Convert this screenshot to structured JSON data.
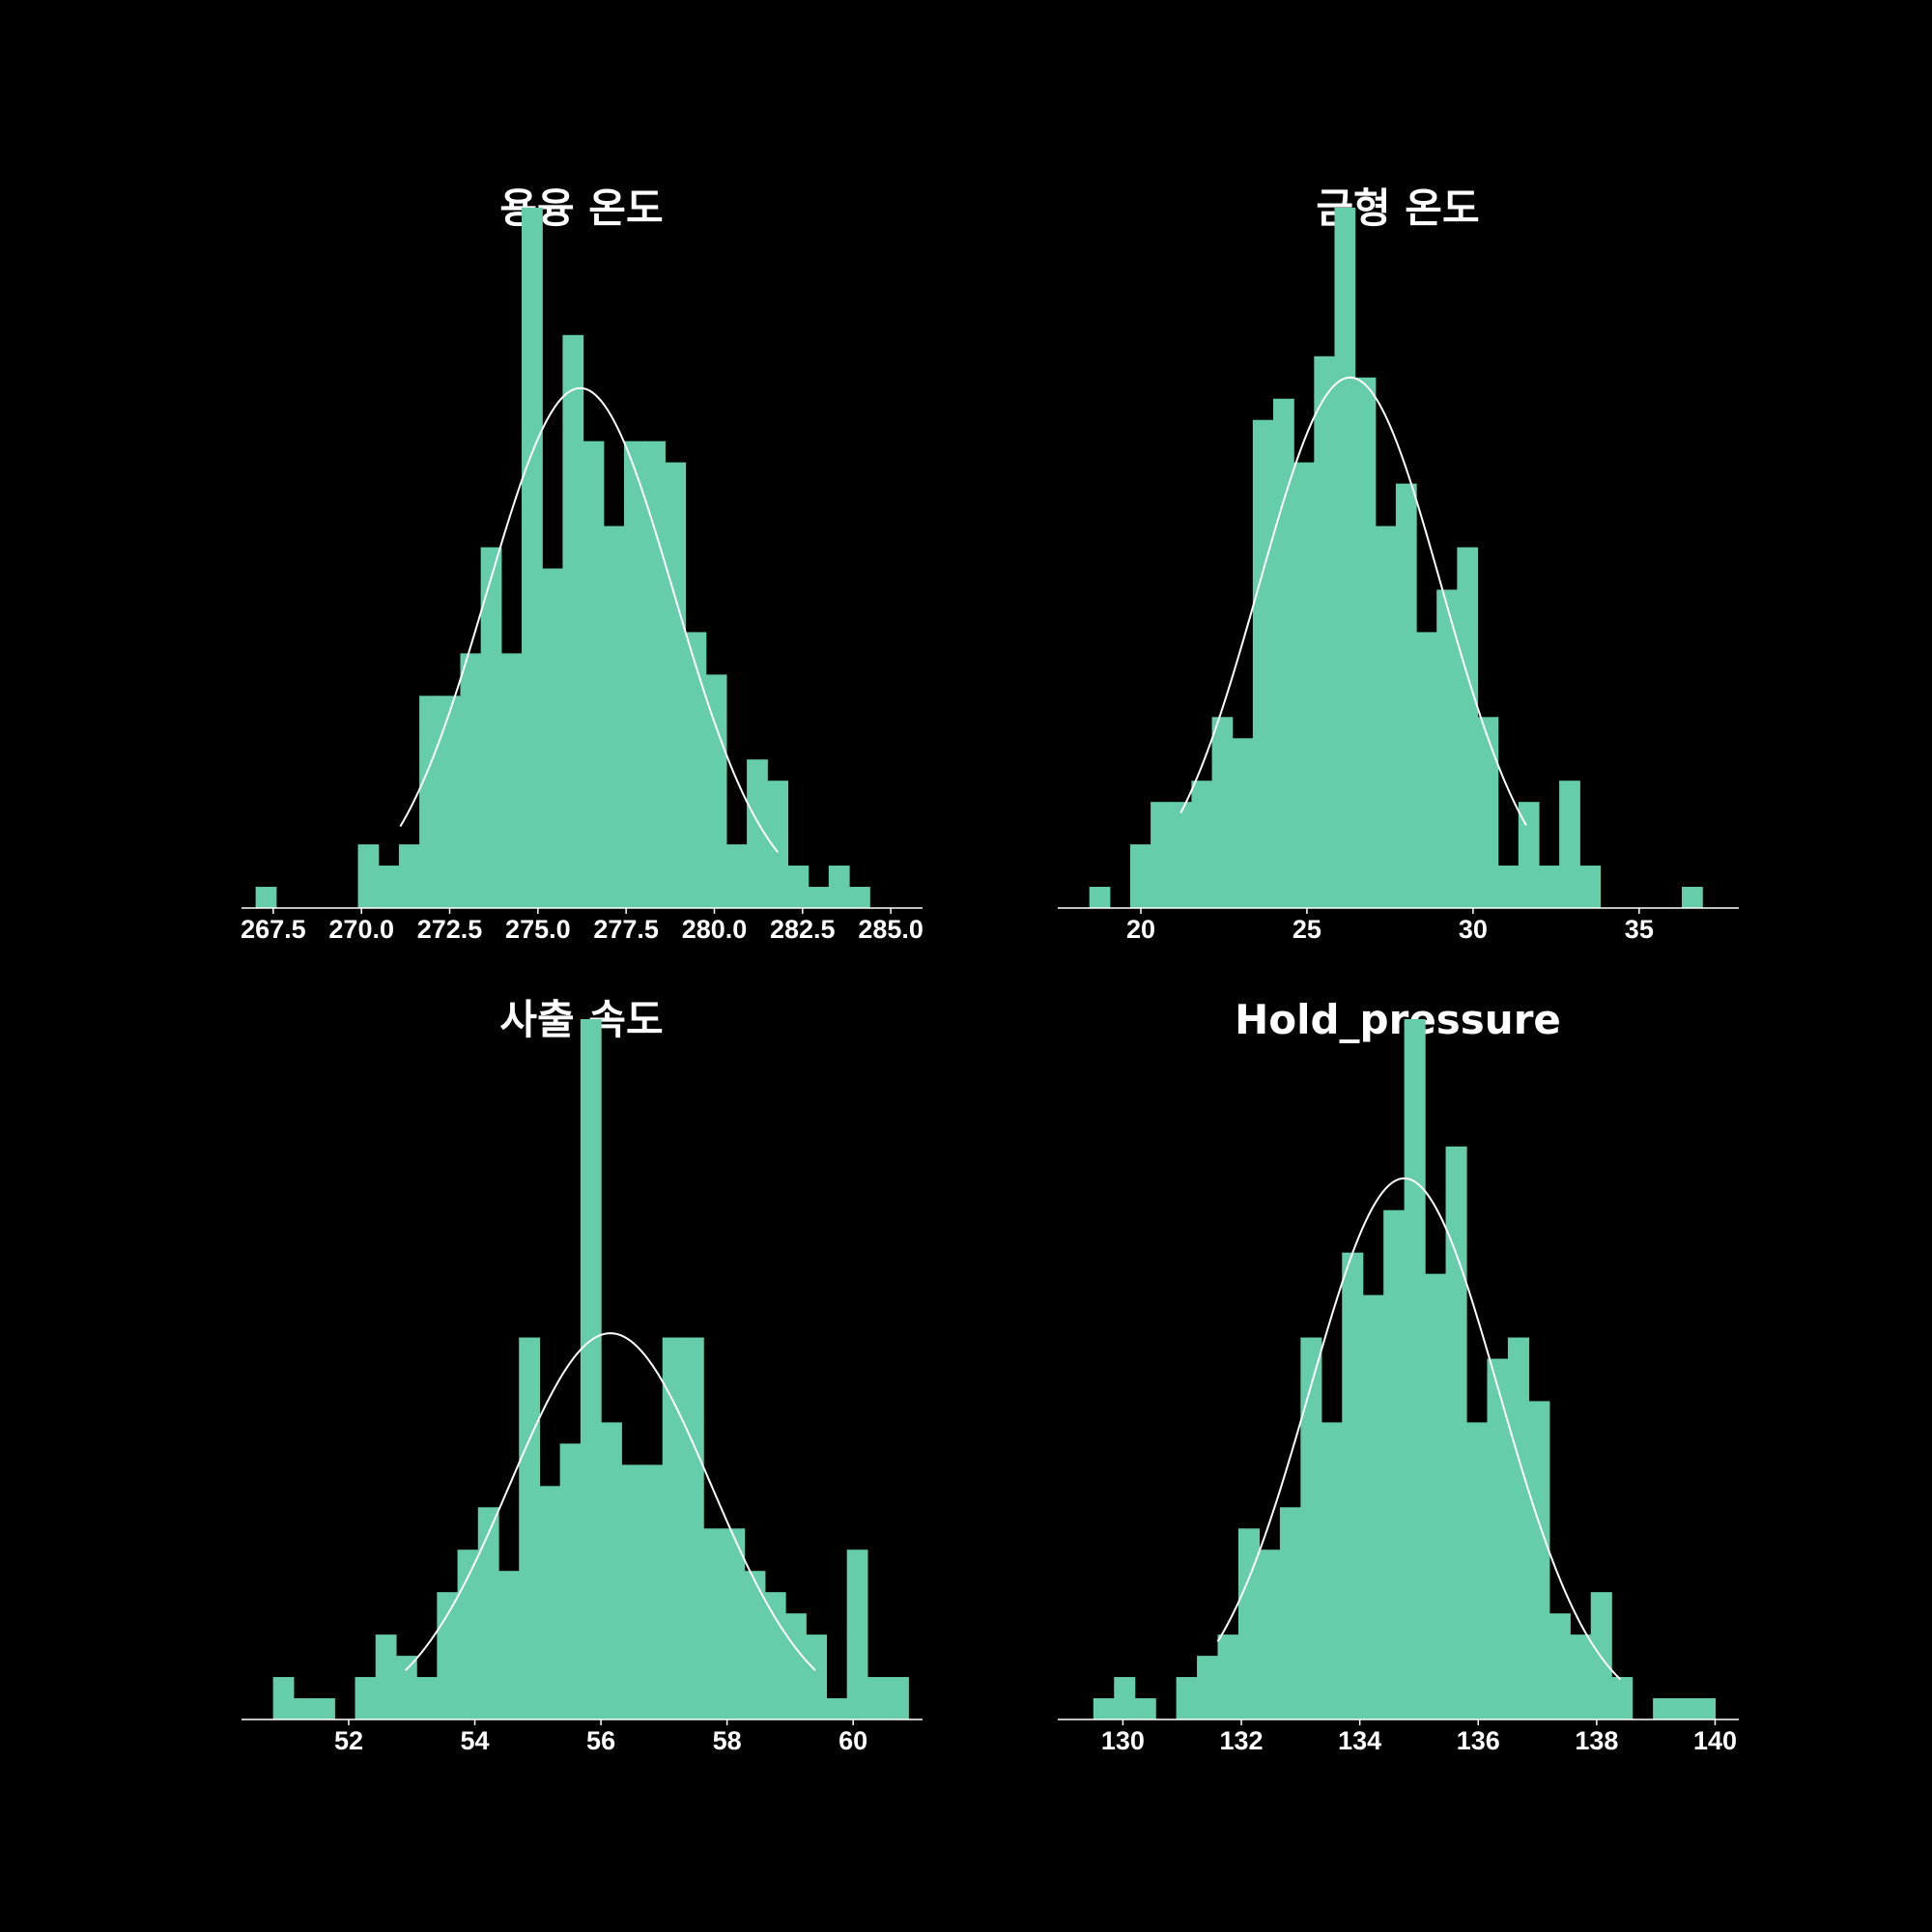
{
  "colors": {
    "background": "#000000",
    "bar": "#66cdaa",
    "curve": "#ffffff",
    "text": "#ffffff"
  },
  "chart_data": [
    {
      "type": "bar",
      "title": "용융 온도",
      "xlim": [
        266.6,
        285.9
      ],
      "ylim": [
        0,
        33
      ],
      "xticks": [
        267.5,
        270.0,
        272.5,
        275.0,
        277.5,
        280.0,
        282.5,
        285.0
      ],
      "xtick_labels": [
        "267.5",
        "270.0",
        "272.5",
        "275.0",
        "277.5",
        "280.0",
        "282.5",
        "285.0"
      ],
      "bin_start": 267.0,
      "bin_width": 0.58,
      "values": [
        1,
        0,
        0,
        0,
        0,
        3,
        2,
        3,
        10,
        10,
        12,
        17,
        12,
        33,
        16,
        27,
        22,
        18,
        22,
        22,
        21,
        13,
        11,
        3,
        7,
        6,
        2,
        1,
        2,
        1
      ],
      "normal_fit": {
        "mean": 276.2,
        "std": 2.65,
        "peak": 24.5,
        "xmin": 271.1,
        "xmax": 281.8
      }
    },
    {
      "type": "bar",
      "title": "금형 온도",
      "xlim": [
        17.5,
        38.0
      ],
      "ylim": [
        0,
        33
      ],
      "xticks": [
        20,
        25,
        30,
        35
      ],
      "xtick_labels": [
        "20",
        "25",
        "30",
        "35"
      ],
      "bin_start": 18.45,
      "bin_width": 0.615,
      "values": [
        1,
        0,
        3,
        5,
        5,
        6,
        9,
        8,
        23,
        24,
        21,
        26,
        33,
        25,
        18,
        20,
        13,
        15,
        17,
        9,
        2,
        5,
        2,
        6,
        2,
        0,
        0,
        0,
        0,
        1
      ],
      "normal_fit": {
        "mean": 26.3,
        "std": 2.75,
        "peak": 25,
        "xmin": 21.2,
        "xmax": 31.6
      }
    },
    {
      "type": "bar",
      "title": "사출 속도",
      "xlim": [
        50.3,
        61.1
      ],
      "ylim": [
        0,
        33
      ],
      "xticks": [
        52,
        54,
        56,
        58,
        60
      ],
      "xtick_labels": [
        "52",
        "54",
        "56",
        "58",
        "60"
      ],
      "bin_start": 50.8,
      "bin_width": 0.325,
      "values": [
        2,
        1,
        1,
        0,
        2,
        4,
        3,
        2,
        6,
        8,
        10,
        7,
        18,
        11,
        13,
        33,
        14,
        12,
        12,
        18,
        18,
        9,
        9,
        7,
        6,
        5,
        4,
        1,
        8,
        2,
        2
      ],
      "normal_fit": {
        "mean": 56.15,
        "std": 1.6,
        "peak": 18.2,
        "xmin": 52.9,
        "xmax": 59.4
      }
    },
    {
      "type": "bar",
      "title": "Hold_pressure",
      "xlim": [
        128.9,
        140.4
      ],
      "ylim": [
        0,
        33
      ],
      "xticks": [
        130,
        132,
        134,
        136,
        138,
        140
      ],
      "xtick_labels": [
        "130",
        "132",
        "134",
        "136",
        "138",
        "140"
      ],
      "bin_start": 129.5,
      "bin_width": 0.35,
      "values": [
        1,
        2,
        1,
        0,
        2,
        3,
        4,
        9,
        8,
        10,
        18,
        14,
        22,
        20,
        24,
        33,
        21,
        27,
        14,
        17,
        18,
        15,
        5,
        4,
        6,
        2,
        0,
        1,
        1,
        1
      ],
      "normal_fit": {
        "mean": 134.75,
        "std": 1.6,
        "peak": 25.5,
        "xmin": 131.6,
        "xmax": 138.4
      }
    }
  ]
}
